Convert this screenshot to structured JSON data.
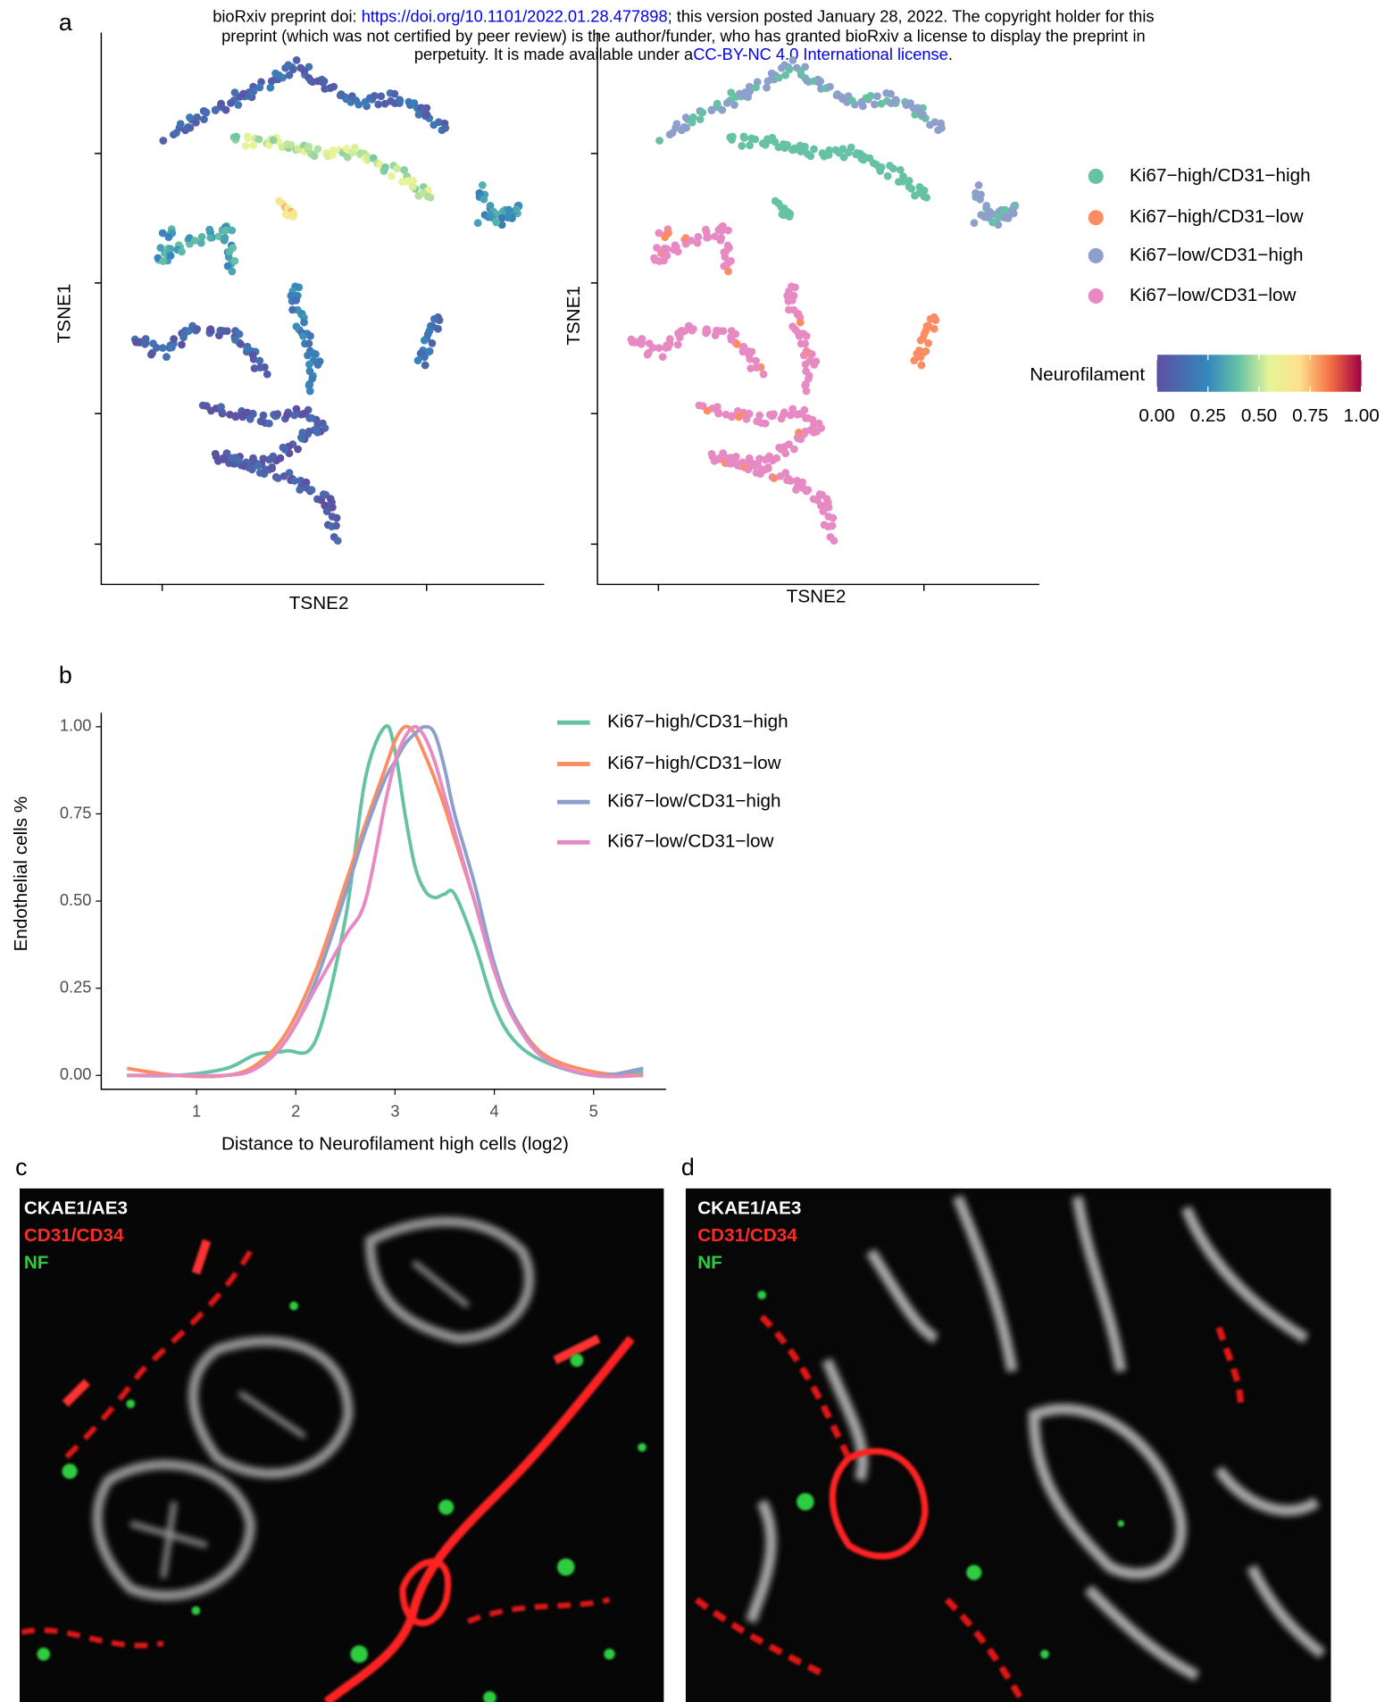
{
  "header": {
    "text_1": "bioRxiv preprint doi: ",
    "doi_link": "https://doi.org/10.1101/2022.01.28.477898",
    "text_2": "; this version posted January 28, 2022. The copyright holder for this",
    "text_3": "preprint (which was not certified by peer review) is the author/funder, who has granted bioRxiv a license to display the preprint in",
    "text_4": "perpetuity. It is made available under a",
    "license_link": "CC-BY-NC 4.0 International license",
    "text_5": "."
  },
  "panel_labels": [
    "a",
    "b",
    "c",
    "d"
  ],
  "tsne": {
    "y_axis_label": "TSNE1",
    "x_axis_label": "TSNE2",
    "legend": [
      {
        "name": "Ki67−high/CD31−high",
        "color": "#66c2a5"
      },
      {
        "name": "Ki67−high/CD31−low",
        "color": "#fc8d62"
      },
      {
        "name": "Ki67−low/CD31−high",
        "color": "#8da0cb"
      },
      {
        "name": "Ki67−low/CD31−low",
        "color": "#e78ac3"
      }
    ],
    "colorbar": {
      "title": "Neurofilament",
      "ticks": [
        {
          "value": 0,
          "label": "0.00"
        },
        {
          "value": 0.25,
          "label": "0.25"
        },
        {
          "value": 0.5,
          "label": "0.50"
        },
        {
          "value": 0.75,
          "label": "0.75"
        },
        {
          "value": 1,
          "label": "1.00"
        }
      ],
      "range": [
        0,
        1
      ]
    }
  },
  "chart_data": {
    "type": "line",
    "x_label": "Distance to Neurofilament high cells (log2)",
    "y_label": "Endothelial cells %",
    "x": [
      0.3,
      0.8,
      1.3,
      1.6,
      1.9,
      2.2,
      2.5,
      2.7,
      2.9,
      3.0,
      3.1,
      3.2,
      3.3,
      3.4,
      3.5,
      3.6,
      3.8,
      4.0,
      4.2,
      4.5,
      5.0,
      5.5
    ],
    "series": [
      {
        "name": "Ki67−high/CD31−high",
        "color": "#66c2a5",
        "values": [
          0.0,
          0.0,
          0.02,
          0.06,
          0.07,
          0.1,
          0.45,
          0.85,
          1.0,
          0.93,
          0.75,
          0.6,
          0.53,
          0.51,
          0.52,
          0.52,
          0.38,
          0.2,
          0.1,
          0.04,
          0.0,
          0.01
        ]
      },
      {
        "name": "Ki67−high/CD31−low",
        "color": "#fc8d62",
        "values": [
          0.02,
          0.0,
          0.0,
          0.03,
          0.12,
          0.3,
          0.55,
          0.72,
          0.88,
          0.96,
          1.0,
          0.98,
          0.92,
          0.85,
          0.77,
          0.68,
          0.5,
          0.3,
          0.17,
          0.06,
          0.01,
          0.0
        ]
      },
      {
        "name": "Ki67−low/CD31−high",
        "color": "#8da0cb",
        "values": [
          0.0,
          0.0,
          0.0,
          0.02,
          0.1,
          0.27,
          0.52,
          0.7,
          0.85,
          0.9,
          0.95,
          0.98,
          1.0,
          0.98,
          0.88,
          0.75,
          0.55,
          0.32,
          0.17,
          0.05,
          0.0,
          0.02
        ]
      },
      {
        "name": "Ki67−low/CD31−low",
        "color": "#e78ac3",
        "values": [
          0.0,
          0.0,
          0.0,
          0.02,
          0.1,
          0.25,
          0.4,
          0.5,
          0.78,
          0.9,
          0.97,
          1.0,
          0.97,
          0.9,
          0.8,
          0.7,
          0.5,
          0.3,
          0.16,
          0.05,
          0.0,
          0.0
        ]
      }
    ],
    "xlim": [
      0.04,
      5.73
    ],
    "ylim": [
      -0.04,
      1.04
    ],
    "xticks": [
      1,
      2,
      3,
      4,
      5
    ],
    "yticks": [
      {
        "value": 0,
        "label": "0.00"
      },
      {
        "value": 0.25,
        "label": "0.25"
      },
      {
        "value": 0.5,
        "label": "0.50"
      },
      {
        "value": 0.75,
        "label": "0.75"
      },
      {
        "value": 1,
        "label": "1.00"
      }
    ]
  },
  "images": [
    {
      "labels": [
        "CKAE1/AE3",
        "CD31/CD34",
        "NF"
      ]
    },
    {
      "labels": [
        "CKAE1/AE3",
        "CD31/CD34",
        "NF"
      ]
    }
  ]
}
